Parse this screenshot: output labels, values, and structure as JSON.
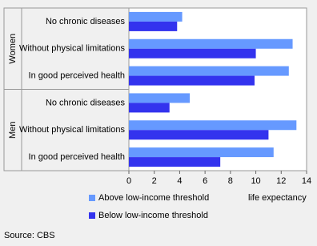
{
  "chart_data": {
    "type": "hbar",
    "groups": [
      "Women",
      "Men"
    ],
    "categories": [
      "No chronic diseases",
      "Without physical limitations",
      "In good perceived health",
      "No chronic diseases",
      "Without physical limitations",
      "In good perceived health"
    ],
    "series": [
      {
        "name": "Above low-income threshold",
        "color": "#6699ff",
        "values": [
          4.2,
          12.9,
          12.6,
          4.8,
          13.2,
          11.4
        ]
      },
      {
        "name": "Below low-income threshold",
        "color": "#3333ee",
        "values": [
          3.8,
          10.0,
          9.9,
          3.2,
          11.0,
          7.2
        ]
      }
    ],
    "xlim": [
      0,
      14
    ],
    "xticks": [
      0,
      2,
      4,
      6,
      8,
      10,
      12,
      14
    ],
    "xlabel": "life expectancy",
    "source": "Source: CBS"
  }
}
